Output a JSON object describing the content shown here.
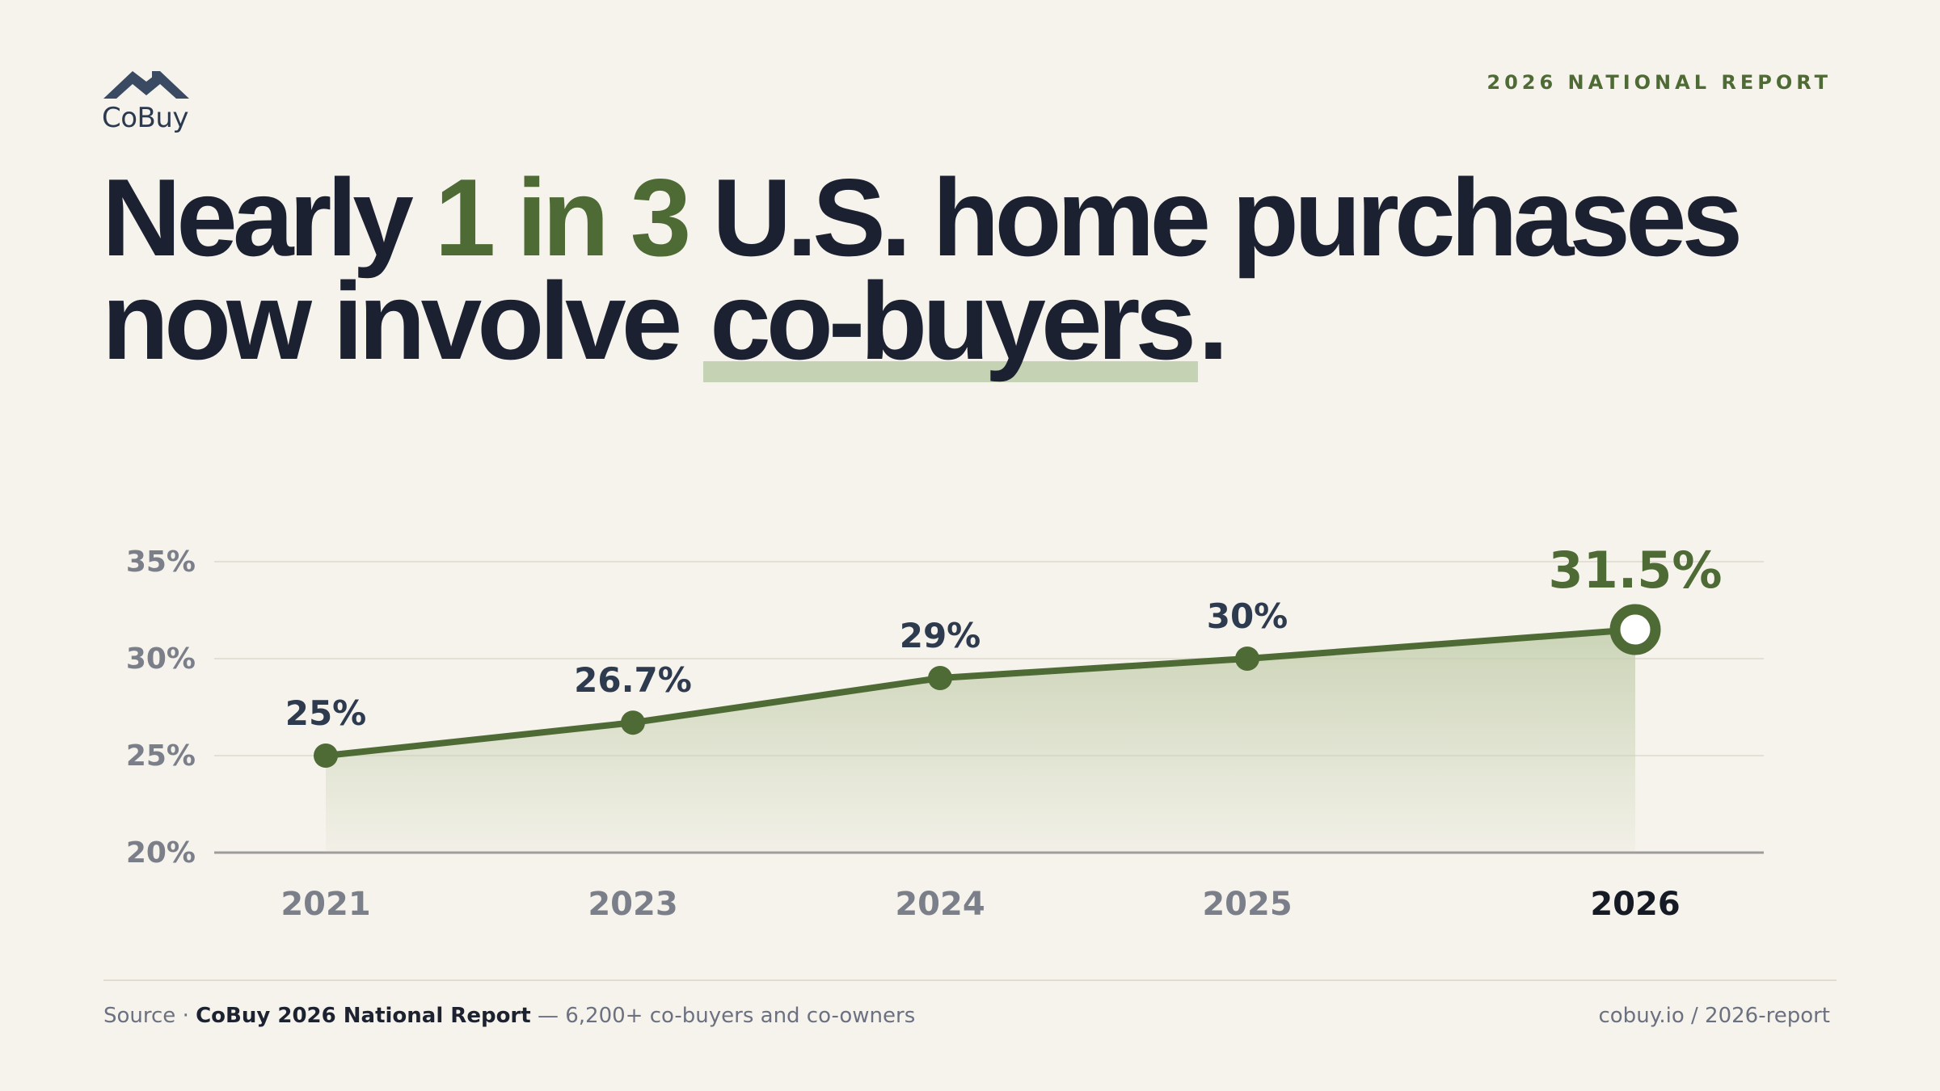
{
  "brand": {
    "logo_text": "CoBuy",
    "logo_icon": "house-roof-icon"
  },
  "report_tag": "2026 NATIONAL REPORT",
  "headline": {
    "part1": "Nearly ",
    "accent": "1 in 3",
    "part2": " U.S. home purchases now involve ",
    "highlight": "co-buyers",
    "end": "."
  },
  "colors": {
    "accent": "#4f6b35",
    "ink": "#1b2130",
    "background": "#f6f3ec",
    "highlight": "#c6d2b4"
  },
  "chart_data": {
    "type": "line",
    "categories": [
      "2021",
      "2023",
      "2024",
      "2025",
      "2026"
    ],
    "values": [
      25,
      26.7,
      29,
      30,
      31.5
    ],
    "value_labels": [
      "25%",
      "26.7%",
      "29%",
      "30%",
      "31.5%"
    ],
    "highlight_category": "2026",
    "ylim": [
      20,
      35
    ],
    "yticks": [
      20,
      25,
      30,
      35
    ],
    "ytick_labels": [
      "20%",
      "25%",
      "30%",
      "35%"
    ],
    "grid": true,
    "area_fill": true
  },
  "footer": {
    "source_prefix": "Source · ",
    "source_title": "CoBuy 2026 National Report",
    "source_suffix": " — 6,200+ co-buyers and co-owners",
    "link": "cobuy.io / 2026-report"
  }
}
